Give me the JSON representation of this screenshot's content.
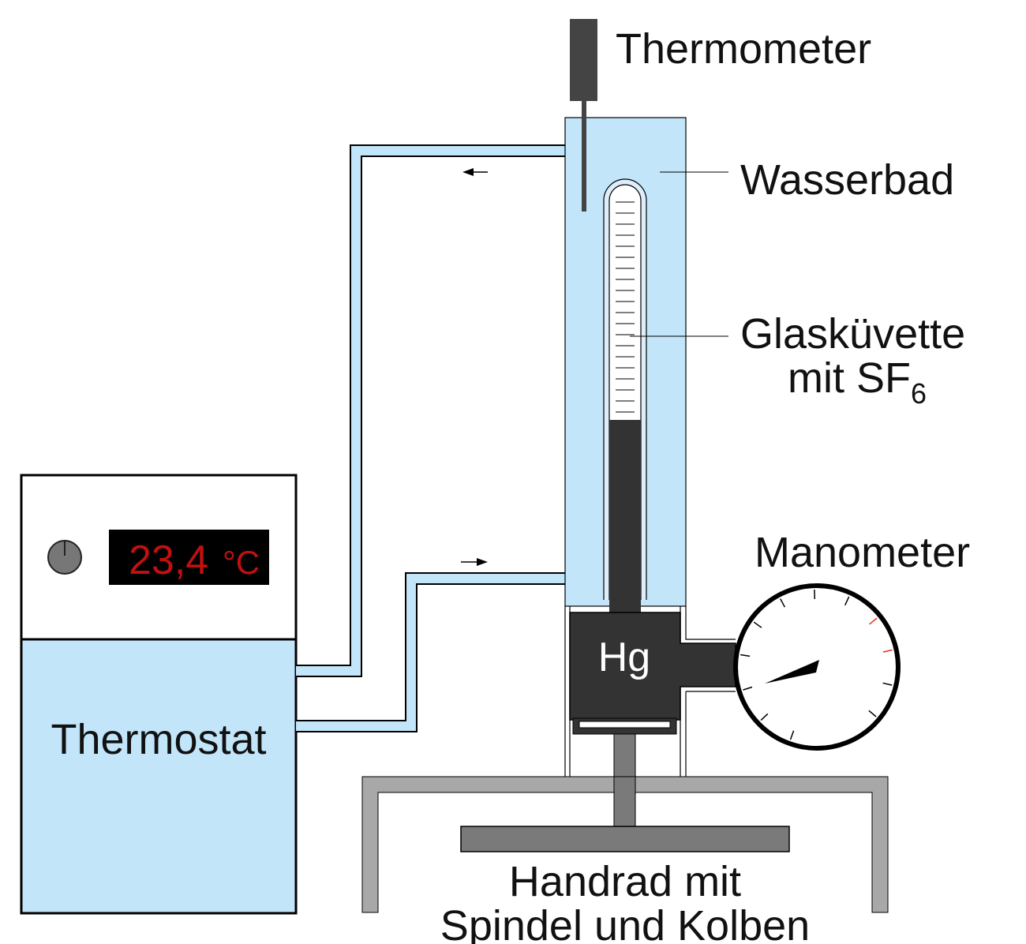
{
  "labels": {
    "thermometer": "Thermometer",
    "water_bath": "Wasserbad",
    "glass_cuvette_line1": "Glasküvette",
    "glass_cuvette_line2": "mit SF",
    "glass_cuvette_subscript": "6",
    "manometer": "Manometer",
    "mercury": "Hg",
    "thermostat": "Thermostat",
    "handwheel_line1": "Handrad mit",
    "handwheel_line2": "Spindel und Kolben"
  },
  "thermostat_display": {
    "value": "23,4",
    "unit": "°C"
  },
  "colors": {
    "water": "#c2e5fa",
    "dark": "#333333",
    "frame_gray": "#a8a8a8",
    "handwheel_gray": "#7a7a7a",
    "display_red": "#c01010",
    "gauge_red_ticks": "#e03020"
  }
}
